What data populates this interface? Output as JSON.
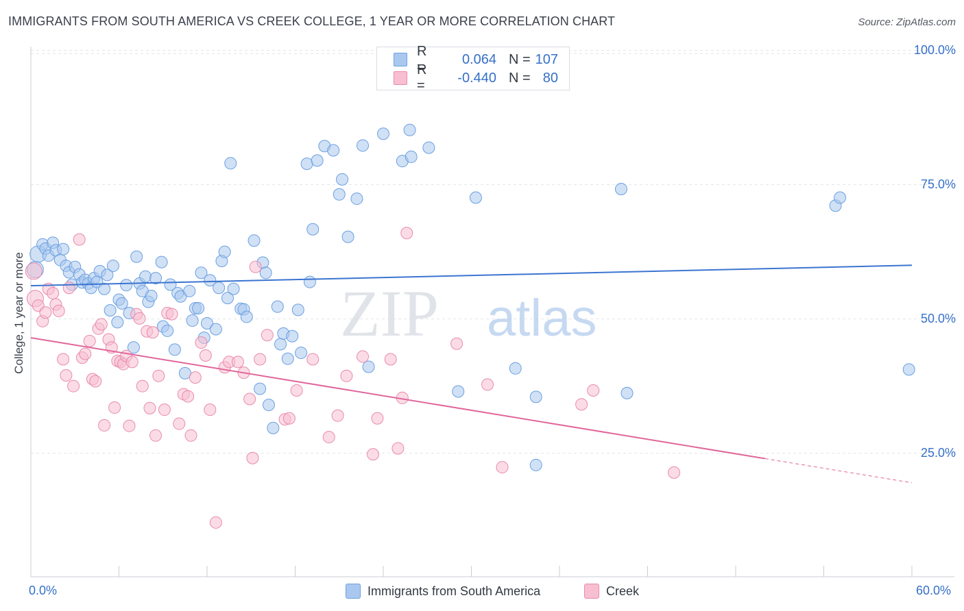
{
  "title": "IMMIGRANTS FROM SOUTH AMERICA VS CREEK COLLEGE, 1 YEAR OR MORE CORRELATION CHART",
  "source": "Source: ZipAtlas.com",
  "watermark": {
    "part1": "ZIP",
    "part2": "atlas"
  },
  "legend_stats": [
    {
      "r_label": "R =",
      "r_value": "0.064",
      "n_label": "N =",
      "n_value": "107",
      "color": "#aac8ef",
      "stroke": "#6b9fe0"
    },
    {
      "r_label": "R =",
      "r_value": "-0.440",
      "n_label": "N =",
      "n_value": "80",
      "color": "#f7bfd1",
      "stroke": "#e98aab"
    }
  ],
  "chart_data": {
    "type": "scatter",
    "title": "IMMIGRANTS FROM SOUTH AMERICA VS CREEK COLLEGE, 1 YEAR OR MORE CORRELATION CHART",
    "xlabel": "",
    "ylabel": "College, 1 year or more",
    "xlim": [
      0,
      60
    ],
    "ylim": [
      2,
      102
    ],
    "x_tick_labels": [
      "0.0%",
      "60.0%"
    ],
    "y_ticks": [
      25,
      50,
      75,
      100
    ],
    "y_tick_labels": [
      "25.0%",
      "50.0%",
      "75.0%",
      "100.0%"
    ],
    "grid": true,
    "legend_position": "bottom-center",
    "series": [
      {
        "name": "Immigrants from South America",
        "color": "#aac8ef",
        "stroke": "#6b9fe0",
        "trend": {
          "x": [
            0,
            60
          ],
          "y": [
            56.2,
            60.0
          ],
          "color": "#3b74d1"
        },
        "points": [
          [
            0.3,
            59.2
          ],
          [
            0.5,
            62.1
          ],
          [
            0.8,
            63.9
          ],
          [
            1.0,
            63.1
          ],
          [
            1.2,
            61.8
          ],
          [
            1.5,
            64.2
          ],
          [
            1.7,
            62.8
          ],
          [
            2.0,
            61.0
          ],
          [
            2.2,
            63.0
          ],
          [
            2.4,
            59.9
          ],
          [
            2.6,
            58.7
          ],
          [
            2.8,
            56.4
          ],
          [
            3.0,
            59.7
          ],
          [
            3.3,
            58.3
          ],
          [
            3.5,
            56.8
          ],
          [
            3.7,
            57.3
          ],
          [
            3.9,
            56.6
          ],
          [
            4.1,
            55.8
          ],
          [
            4.3,
            57.6
          ],
          [
            4.5,
            56.9
          ],
          [
            4.7,
            58.9
          ],
          [
            5.0,
            55.6
          ],
          [
            5.2,
            58.2
          ],
          [
            5.4,
            51.6
          ],
          [
            5.6,
            59.9
          ],
          [
            5.9,
            49.4
          ],
          [
            6.0,
            53.6
          ],
          [
            6.2,
            52.9
          ],
          [
            6.5,
            56.3
          ],
          [
            6.7,
            51.1
          ],
          [
            7.0,
            44.7
          ],
          [
            7.2,
            61.6
          ],
          [
            7.4,
            56.6
          ],
          [
            7.6,
            55.2
          ],
          [
            7.8,
            57.9
          ],
          [
            8.0,
            53.2
          ],
          [
            8.2,
            54.3
          ],
          [
            8.5,
            57.6
          ],
          [
            8.9,
            60.6
          ],
          [
            9.0,
            48.6
          ],
          [
            9.3,
            47.8
          ],
          [
            9.5,
            56.4
          ],
          [
            9.8,
            44.3
          ],
          [
            10.0,
            54.8
          ],
          [
            10.2,
            54.2
          ],
          [
            10.5,
            39.9
          ],
          [
            10.8,
            55.2
          ],
          [
            11.0,
            49.7
          ],
          [
            11.2,
            52.0
          ],
          [
            11.4,
            52.0
          ],
          [
            11.6,
            58.6
          ],
          [
            11.8,
            46.5
          ],
          [
            12.0,
            49.2
          ],
          [
            12.2,
            57.2
          ],
          [
            12.6,
            48.1
          ],
          [
            12.8,
            55.8
          ],
          [
            13.0,
            60.8
          ],
          [
            13.2,
            62.5
          ],
          [
            13.4,
            53.9
          ],
          [
            13.6,
            79.0
          ],
          [
            13.8,
            55.6
          ],
          [
            14.3,
            51.9
          ],
          [
            14.5,
            51.8
          ],
          [
            14.7,
            50.4
          ],
          [
            15.2,
            64.6
          ],
          [
            15.6,
            37.0
          ],
          [
            15.8,
            60.5
          ],
          [
            16.0,
            58.6
          ],
          [
            16.2,
            34.0
          ],
          [
            16.5,
            29.7
          ],
          [
            16.8,
            52.3
          ],
          [
            17.0,
            45.3
          ],
          [
            17.2,
            47.3
          ],
          [
            17.5,
            42.6
          ],
          [
            17.8,
            46.8
          ],
          [
            18.2,
            51.7
          ],
          [
            18.4,
            43.7
          ],
          [
            18.8,
            78.9
          ],
          [
            19.0,
            56.9
          ],
          [
            19.2,
            66.7
          ],
          [
            19.5,
            79.5
          ],
          [
            20.0,
            82.2
          ],
          [
            20.6,
            81.4
          ],
          [
            21.0,
            73.2
          ],
          [
            21.2,
            76.0
          ],
          [
            21.6,
            65.3
          ],
          [
            22.2,
            72.4
          ],
          [
            22.6,
            82.3
          ],
          [
            23.0,
            41.1
          ],
          [
            24.0,
            84.5
          ],
          [
            25.3,
            79.4
          ],
          [
            25.8,
            85.2
          ],
          [
            25.9,
            80.2
          ],
          [
            27.1,
            81.9
          ],
          [
            29.1,
            36.5
          ],
          [
            30.3,
            72.6
          ],
          [
            33.0,
            40.8
          ],
          [
            34.4,
            35.5
          ],
          [
            34.4,
            22.8
          ],
          [
            40.2,
            74.2
          ],
          [
            40.6,
            36.2
          ],
          [
            54.8,
            71.1
          ],
          [
            55.1,
            72.6
          ],
          [
            59.8,
            40.6
          ]
        ]
      },
      {
        "name": "Creek",
        "color": "#f7bfd1",
        "stroke": "#e98aab",
        "trend": {
          "x": [
            0,
            60
          ],
          "y": [
            46.5,
            19.5
          ],
          "solid_until": 50,
          "color": "#e0669a"
        },
        "points": [
          [
            0.2,
            58.9
          ],
          [
            0.3,
            53.8
          ],
          [
            0.5,
            52.5
          ],
          [
            0.8,
            49.6
          ],
          [
            1.0,
            51.2
          ],
          [
            1.2,
            55.6
          ],
          [
            1.5,
            54.8
          ],
          [
            1.7,
            52.7
          ],
          [
            1.9,
            51.5
          ],
          [
            2.2,
            42.5
          ],
          [
            2.4,
            39.5
          ],
          [
            2.6,
            55.8
          ],
          [
            2.9,
            37.5
          ],
          [
            3.3,
            64.8
          ],
          [
            3.5,
            42.8
          ],
          [
            3.7,
            43.5
          ],
          [
            4.0,
            45.9
          ],
          [
            4.2,
            38.8
          ],
          [
            4.4,
            38.4
          ],
          [
            4.6,
            48.2
          ],
          [
            4.8,
            49.0
          ],
          [
            5.0,
            30.2
          ],
          [
            5.3,
            46.2
          ],
          [
            5.5,
            44.7
          ],
          [
            5.7,
            33.5
          ],
          [
            5.9,
            42.2
          ],
          [
            6.1,
            42.0
          ],
          [
            6.3,
            41.6
          ],
          [
            6.5,
            43.1
          ],
          [
            6.7,
            30.1
          ],
          [
            6.9,
            42.0
          ],
          [
            7.2,
            50.9
          ],
          [
            7.4,
            50.1
          ],
          [
            7.6,
            37.5
          ],
          [
            7.9,
            47.7
          ],
          [
            8.1,
            33.4
          ],
          [
            8.3,
            47.5
          ],
          [
            8.5,
            28.3
          ],
          [
            8.7,
            39.4
          ],
          [
            9.1,
            33.1
          ],
          [
            9.3,
            51.1
          ],
          [
            9.6,
            50.9
          ],
          [
            10.1,
            30.5
          ],
          [
            10.4,
            36.0
          ],
          [
            10.7,
            35.6
          ],
          [
            10.9,
            28.3
          ],
          [
            11.2,
            39.1
          ],
          [
            11.6,
            45.6
          ],
          [
            11.9,
            43.2
          ],
          [
            12.2,
            33.1
          ],
          [
            12.6,
            12.1
          ],
          [
            13.2,
            41.0
          ],
          [
            13.5,
            42.0
          ],
          [
            14.1,
            42.0
          ],
          [
            14.5,
            40.0
          ],
          [
            14.9,
            35.1
          ],
          [
            15.1,
            24.1
          ],
          [
            15.3,
            59.7
          ],
          [
            15.6,
            42.5
          ],
          [
            16.1,
            47.0
          ],
          [
            17.3,
            31.3
          ],
          [
            17.6,
            31.5
          ],
          [
            18.1,
            36.7
          ],
          [
            19.2,
            42.5
          ],
          [
            20.3,
            28.0
          ],
          [
            20.9,
            32.0
          ],
          [
            21.5,
            39.4
          ],
          [
            22.6,
            43.0
          ],
          [
            23.3,
            24.8
          ],
          [
            23.6,
            31.5
          ],
          [
            24.5,
            42.5
          ],
          [
            25.0,
            25.9
          ],
          [
            25.3,
            35.3
          ],
          [
            25.6,
            66.0
          ],
          [
            29.0,
            45.4
          ],
          [
            31.1,
            37.8
          ],
          [
            32.1,
            22.4
          ],
          [
            37.5,
            34.1
          ],
          [
            38.3,
            36.7
          ],
          [
            43.8,
            21.4
          ]
        ]
      }
    ]
  }
}
